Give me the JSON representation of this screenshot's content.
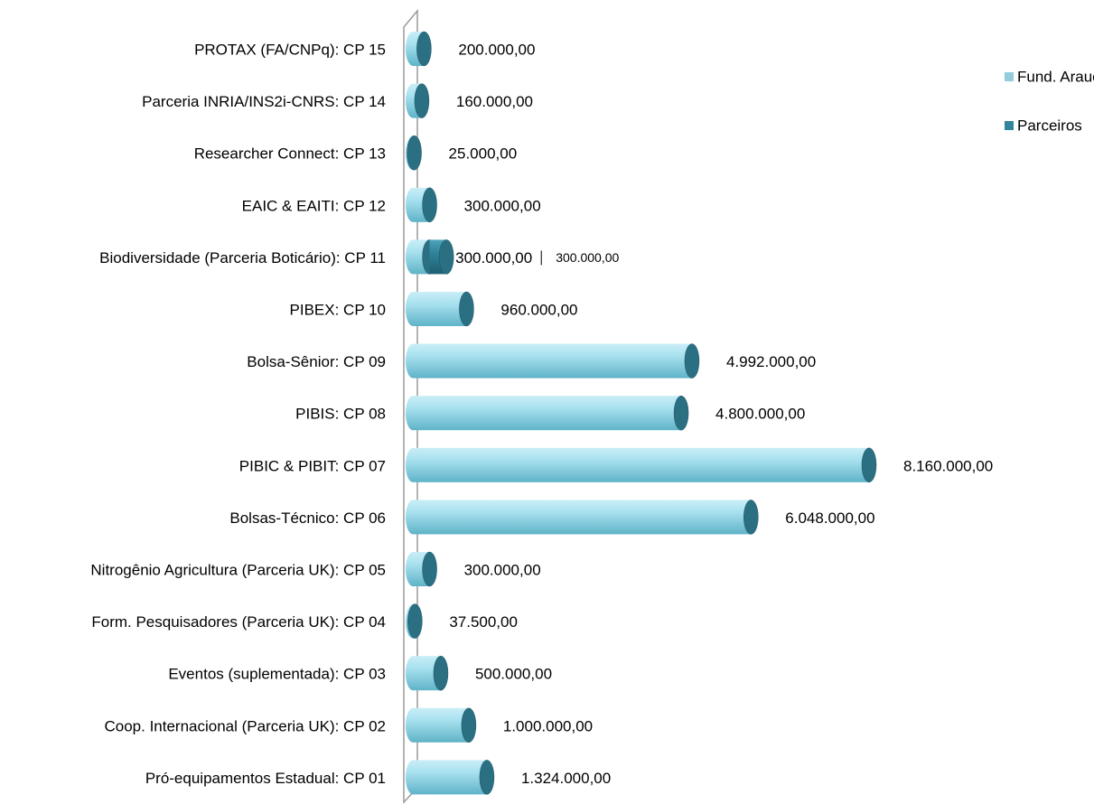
{
  "chart_data": {
    "type": "bar",
    "categories": [
      "PROTAX (FA/CNPq): CP 15",
      "Parceria INRIA/INS2i-CNRS: CP 14",
      "Researcher Connect: CP 13",
      "EAIC & EAITI: CP 12",
      "Biodiversidade (Parceria Boticário): CP 11",
      "PIBEX: CP 10",
      "Bolsa-Sênior: CP 09",
      "PIBIS: CP 08",
      "PIBIC & PIBIT: CP 07",
      "Bolsas-Técnico: CP 06",
      "Nitrogênio Agricultura (Parceria UK): CP 05",
      "Form. Pesquisadores (Parceria UK): CP 04",
      "Eventos (suplementada): CP 03",
      "Coop. Internacional (Parceria UK): CP 02",
      "Pró-equipamentos Estadual: CP 01"
    ],
    "series": [
      {
        "name": "Fund. Araucária",
        "color": "#93cddd",
        "values": [
          200000,
          160000,
          25000,
          300000,
          300000,
          960000,
          4992000,
          4800000,
          8160000,
          6048000,
          300000,
          37500,
          500000,
          1000000,
          1324000
        ],
        "value_labels": [
          "200.000,00",
          "160.000,00",
          "25.000,00",
          "300.000,00",
          "300.000,00",
          "960.000,00",
          "4.992.000,00",
          "4.800.000,00",
          "8.160.000,00",
          "6.048.000,00",
          "300.000,00",
          "37.500,00",
          "500.000,00",
          "1.000.000,00",
          "1.324.000,00"
        ]
      },
      {
        "name": "Parceiros",
        "color": "#31859c",
        "values": [
          null,
          null,
          null,
          null,
          300000,
          null,
          null,
          null,
          null,
          null,
          null,
          null,
          null,
          null,
          null
        ],
        "value_labels": [
          null,
          null,
          null,
          null,
          "300.000,00",
          null,
          null,
          null,
          null,
          null,
          null,
          null,
          null,
          null,
          null
        ]
      }
    ],
    "stacked": true,
    "legend": "right"
  }
}
